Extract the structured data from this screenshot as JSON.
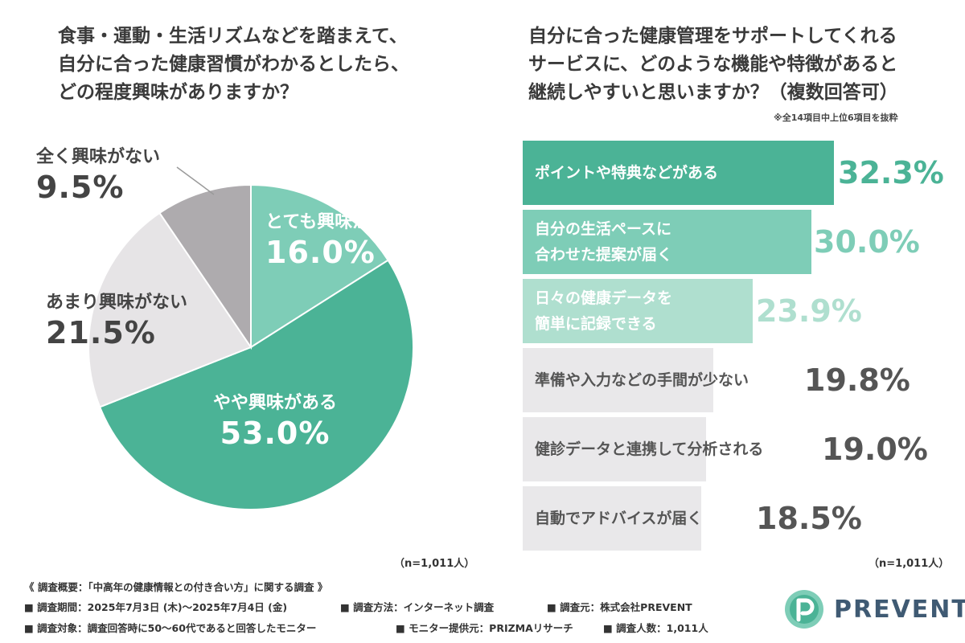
{
  "left": {
    "title_lines": [
      "食事・運動・生活リズムなどを踏まえて、",
      "自分に合った健康習慣がわかるとしたら、",
      "どの程度興味がありますか？"
    ],
    "n": "（n=1,011人）"
  },
  "right": {
    "title_lines": [
      "自分に合った健康管理をサポートしてくれる",
      "サービスに、どのような機能や特徴があると",
      "継続しやすいと思いますか？（複数回答可）"
    ],
    "note": "※全14項目中上位6項目を抜粋",
    "n": "（n=1,011人）"
  },
  "chart_data": [
    {
      "type": "pie",
      "title": "食事・運動・生活リズムなどを踏まえて、自分に合った健康習慣がわかるとしたら、どの程度興味がありますか？",
      "slices": [
        {
          "label": "とても興味がある",
          "value": 16.0,
          "display": "16.0%",
          "color": "#7ecdb7"
        },
        {
          "label": "やや興味がある",
          "value": 53.0,
          "display": "53.0%",
          "color": "#4bb396"
        },
        {
          "label": "あまり興味がない",
          "value": 21.5,
          "display": "21.5%",
          "color": "#e6e4e6"
        },
        {
          "label": "全く興味がない",
          "value": 9.5,
          "display": "9.5%",
          "color": "#aeabae"
        }
      ],
      "start": "12 o'clock, clockwise"
    },
    {
      "type": "bar",
      "orientation": "horizontal",
      "title": "自分に合った健康管理をサポートしてくれるサービスに、どのような機能や特徴があると継続しやすいと思いますか？（複数回答可）",
      "xlim": [
        0,
        35
      ],
      "bars": [
        {
          "label_lines": [
            "ポイントや特典などがある"
          ],
          "value": 32.3,
          "display": "32.3%",
          "color": "#4bb396",
          "text_color": "#ffffff",
          "value_color": "#4bb396"
        },
        {
          "label_lines": [
            "自分の生活ペースに",
            "合わせた提案が届く"
          ],
          "value": 30.0,
          "display": "30.0%",
          "color": "#7ecdb7",
          "text_color": "#ffffff",
          "value_color": "#7ecdb7"
        },
        {
          "label_lines": [
            "日々の健康データを",
            "簡単に記録できる"
          ],
          "value": 23.9,
          "display": "23.9%",
          "color": "#afdfcf",
          "text_color": "#ffffff",
          "value_color": "#afdfcf"
        },
        {
          "label_lines": [
            "準備や入力などの手間が少ない"
          ],
          "value": 19.8,
          "display": "19.8%",
          "color": "#e9e8ea",
          "text_color": "#555555",
          "value_color": "#555555"
        },
        {
          "label_lines": [
            "健診データと連携して分析される"
          ],
          "value": 19.0,
          "display": "19.0%",
          "color": "#e9e8ea",
          "text_color": "#555555",
          "value_color": "#555555"
        },
        {
          "label_lines": [
            "自動でアドバイスが届く"
          ],
          "value": 18.5,
          "display": "18.5%",
          "color": "#e9e8ea",
          "text_color": "#555555",
          "value_color": "#555555"
        }
      ]
    }
  ],
  "footer": {
    "heading": "《 調査概要：「中高年の健康情報との付き合い方」に関する調査 》",
    "row1": [
      "■ 調査期間：2025年7月3日 (木)〜2025年7月4日 (金)",
      "■ 調査方法：インターネット調査",
      "■ 調査元：株式会社PREVENT"
    ],
    "row2": [
      "■ 調査対象：調査回答時に50〜60代であると回答したモニター",
      "■ モニター提供元：PRIZMAリサーチ",
      "■ 調査人数：1,011人"
    ]
  },
  "logo": {
    "text": "PREVENT",
    "color": "#3f5a73"
  }
}
